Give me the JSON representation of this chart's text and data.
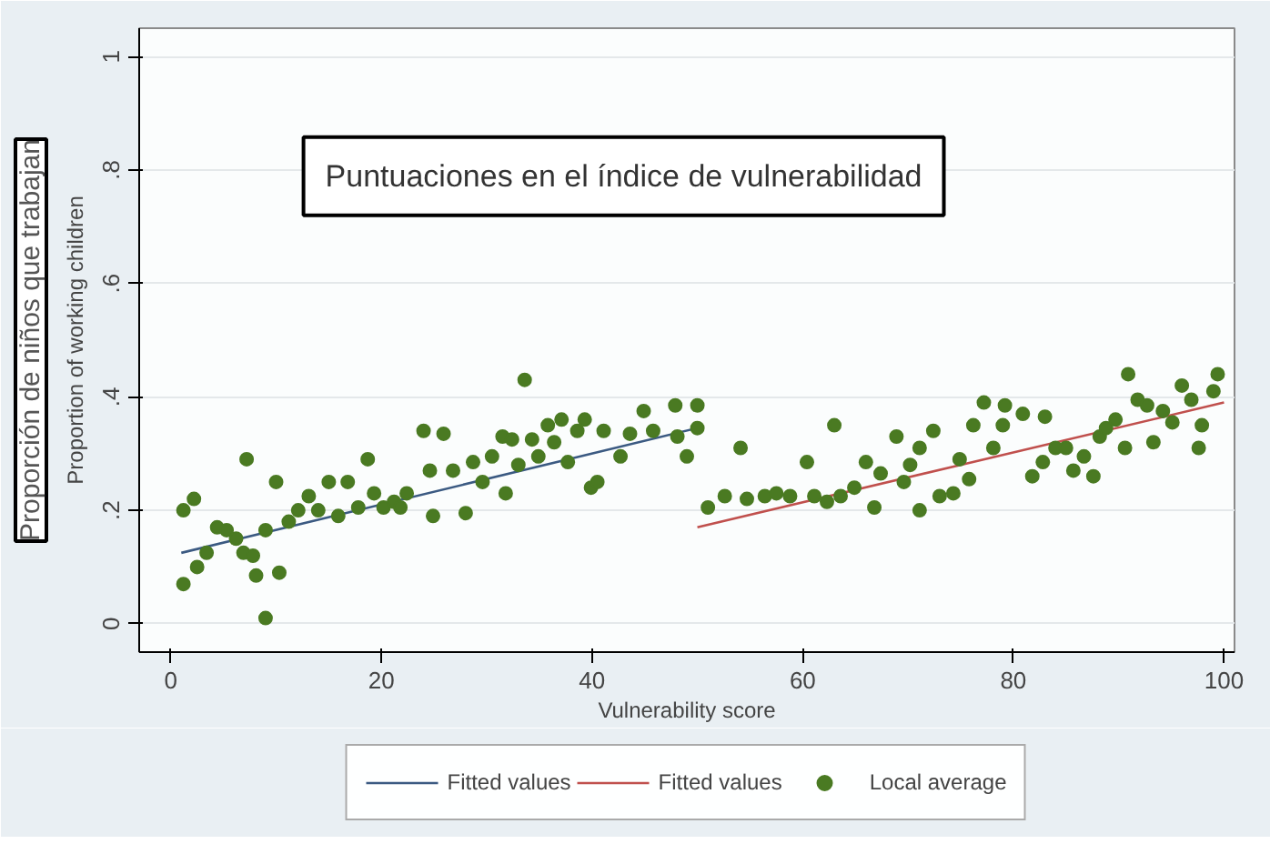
{
  "chart_data": {
    "type": "scatter",
    "xlabel": "Vulnerability score",
    "ylabel": "Proportion of working children",
    "annotations": [
      "Proporción de niños que trabajan",
      "Puntuaciones en el índice de vulnerabilidad"
    ],
    "xlim": [
      -3,
      101
    ],
    "ylim": [
      -0.05,
      1.05
    ],
    "xticks": [
      0,
      20,
      40,
      60,
      80,
      100
    ],
    "yticks": [
      0,
      {
        "value": 0.2,
        "label": ".2"
      },
      {
        "value": 0.4,
        "label": ".4"
      },
      {
        "value": 0.6,
        "label": ".6"
      },
      {
        "value": 0.8,
        "label": ".8"
      },
      1
    ],
    "grid": "y",
    "legend": "bottom",
    "series": [
      {
        "name": "Fitted values",
        "type": "line",
        "color": "#3b5a82",
        "line_style": "solid",
        "x": [
          1,
          50
        ],
        "values": [
          0.125,
          0.345
        ]
      },
      {
        "name": "Fitted values",
        "type": "line",
        "color": "#c0504d",
        "line_style": "solid",
        "x": [
          50,
          100
        ],
        "values": [
          0.17,
          0.39
        ]
      },
      {
        "name": "Local average",
        "marker": "circle",
        "color": "#4a7a22",
        "x": [
          1.2,
          2.2,
          1.2,
          2.5,
          3.4,
          4.4,
          5.3,
          6.2,
          7.2,
          6.9,
          7.8,
          8.1,
          9,
          9,
          10,
          10.3,
          11.2,
          12.1,
          13.1,
          14,
          15,
          15.9,
          16.8,
          17.8,
          18.7,
          19.3,
          20.2,
          21.2,
          21.8,
          22.4,
          24,
          24.6,
          24.9,
          25.9,
          26.8,
          28,
          28.7,
          29.6,
          30.5,
          31.5,
          31.8,
          32.4,
          33,
          33.6,
          34.3,
          34.9,
          35.8,
          36.4,
          37.1,
          37.7,
          38.6,
          39.3,
          39.9,
          40.5,
          41.1,
          42.7,
          43.6,
          44.9,
          45.8,
          47.9,
          50,
          50,
          49,
          48.1,
          54.1,
          52.6,
          51,
          54.7,
          56.4,
          57.5,
          58.8,
          60.4,
          61.1,
          62.3,
          63,
          63.6,
          64.9,
          66,
          66.8,
          67.4,
          68.9,
          69.6,
          70.2,
          71.1,
          71.1,
          72.4,
          73,
          74.3,
          74.9,
          75.8,
          76.2,
          77.2,
          78.1,
          79,
          79.2,
          80.9,
          81.8,
          82.8,
          83,
          84,
          85,
          85.7,
          86.7,
          87.6,
          88.2,
          88.8,
          89.7,
          90.6,
          90.9,
          91.8,
          92.7,
          93.3,
          94.2,
          95.1,
          96,
          96.9,
          97.6,
          97.9,
          99,
          99.4
        ],
        "values": [
          0.2,
          0.22,
          0.07,
          0.1,
          0.125,
          0.17,
          0.165,
          0.15,
          0.29,
          0.125,
          0.12,
          0.085,
          0.01,
          0.165,
          0.25,
          0.09,
          0.18,
          0.2,
          0.225,
          0.2,
          0.25,
          0.19,
          0.25,
          0.205,
          0.29,
          0.23,
          0.205,
          0.215,
          0.205,
          0.23,
          0.34,
          0.27,
          0.19,
          0.335,
          0.27,
          0.195,
          0.285,
          0.25,
          0.295,
          0.33,
          0.23,
          0.325,
          0.28,
          0.43,
          0.325,
          0.295,
          0.35,
          0.32,
          0.36,
          0.285,
          0.34,
          0.36,
          0.24,
          0.25,
          0.34,
          0.295,
          0.335,
          0.375,
          0.34,
          0.385,
          0.385,
          0.345,
          0.295,
          0.33,
          0.31,
          0.225,
          0.205,
          0.22,
          0.225,
          0.23,
          0.225,
          0.285,
          0.225,
          0.215,
          0.35,
          0.225,
          0.24,
          0.285,
          0.205,
          0.265,
          0.33,
          0.25,
          0.28,
          0.2,
          0.31,
          0.34,
          0.225,
          0.23,
          0.29,
          0.255,
          0.35,
          0.39,
          0.31,
          0.35,
          0.385,
          0.37,
          0.26,
          0.285,
          0.365,
          0.31,
          0.31,
          0.27,
          0.295,
          0.26,
          0.33,
          0.345,
          0.36,
          0.31,
          0.44,
          0.395,
          0.385,
          0.32,
          0.375,
          0.355,
          0.42,
          0.395,
          0.31,
          0.35,
          0.41,
          0.44
        ]
      }
    ]
  }
}
